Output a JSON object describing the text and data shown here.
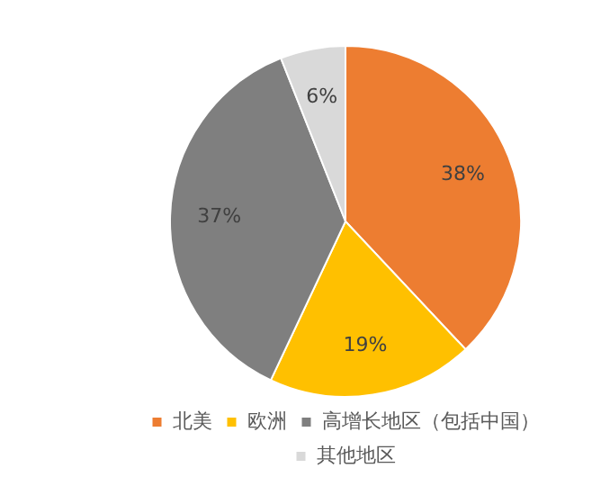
{
  "chart_data": {
    "type": "pie",
    "categories": [
      "北美",
      "欧洲",
      "高增长地区（包括中国）",
      "其他地区"
    ],
    "values": [
      38,
      19,
      37,
      6
    ],
    "colors": [
      "#ed7d31",
      "#ffc000",
      "#7f7f7f",
      "#d9d9d9"
    ],
    "value_labels": [
      "38%",
      "19%",
      "37%",
      "6%"
    ],
    "legend": "bottom"
  }
}
